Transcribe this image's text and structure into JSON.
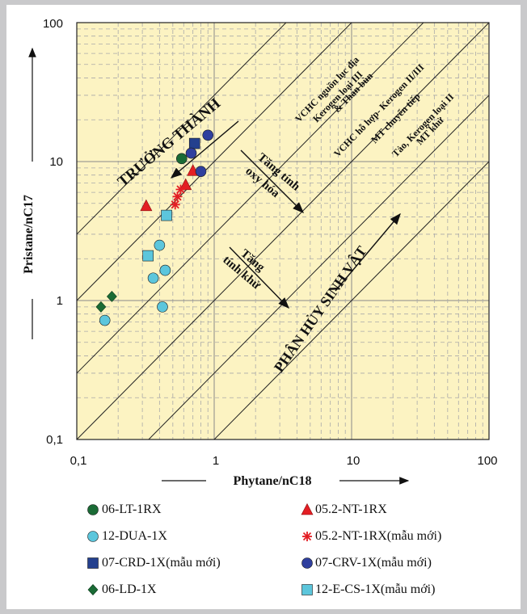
{
  "chart_data": {
    "type": "scatter",
    "x_scale": "log",
    "y_scale": "log",
    "xlim": [
      0.1,
      100
    ],
    "ylim": [
      0.1,
      100
    ],
    "xlabel": "Phytane/nC18",
    "ylabel": "Pristane/nC17",
    "x_ticks": [
      "0,1",
      "1",
      "10",
      "100"
    ],
    "y_ticks": [
      "0,1",
      "1",
      "10",
      "100"
    ],
    "grid": true,
    "annotations": {
      "maturity": "TRƯỞNG THÀNH",
      "biodegradation": "PHÂN HỦY SINH VẬT",
      "oxidation_line1": "Tăng tính",
      "oxidation_line2": "oxy hóa",
      "reduction_line1": "Tăng",
      "reduction_line2": "tính khử",
      "zone1_line1": "VCHC nguồn lục địa",
      "zone1_line2": "Kerogen loại III",
      "zone1_line3": "& Than bùn",
      "zone2_line1": "VCHC hỗ hợp- Kerogen II/III",
      "zone2_line2": "MT chuyển tiếp",
      "zone3_line1": "Tảo, Kerogen loại II",
      "zone3_line2": "MT khử"
    },
    "series": [
      {
        "name": "06-LT-1RX",
        "marker": "circle",
        "color": "#1a6b35",
        "points": [
          [
            0.58,
            10.5
          ]
        ]
      },
      {
        "name": "05.2-NT-1RX",
        "marker": "triangle",
        "color": "#e31e24",
        "points": [
          [
            0.32,
            4.8
          ],
          [
            0.62,
            6.8
          ],
          [
            0.7,
            8.6
          ]
        ]
      },
      {
        "name": "12-DUA-1X",
        "marker": "circle",
        "color": "#5cc6dc",
        "points": [
          [
            0.16,
            0.72
          ],
          [
            0.36,
            1.45
          ],
          [
            0.4,
            2.5
          ],
          [
            0.44,
            1.65
          ],
          [
            0.42,
            0.9
          ]
        ]
      },
      {
        "name": "05.2-NT-1RX(mẫu mới)",
        "marker": "asterisk",
        "color": "#e31e24",
        "points": [
          [
            0.52,
            4.9
          ],
          [
            0.54,
            5.6
          ],
          [
            0.57,
            6.3
          ]
        ]
      },
      {
        "name": "07-CRD-1X(mẫu mới)",
        "marker": "square",
        "color": "#24408e",
        "points": [
          [
            0.72,
            13.5
          ]
        ]
      },
      {
        "name": "07-CRV-1X(mẫu mới)",
        "marker": "circle",
        "color": "#2f3f9e",
        "points": [
          [
            0.68,
            11.5
          ],
          [
            0.8,
            8.5
          ],
          [
            0.9,
            15.5
          ]
        ]
      },
      {
        "name": "06-LD-1X",
        "marker": "diamond",
        "color": "#1a6b35",
        "points": [
          [
            0.15,
            0.9
          ],
          [
            0.18,
            1.07
          ]
        ]
      },
      {
        "name": "12-E-CS-1X(mẫu mới)",
        "marker": "square",
        "color": "#5cc6dc",
        "points": [
          [
            0.33,
            2.1
          ],
          [
            0.45,
            4.1
          ]
        ]
      }
    ]
  }
}
